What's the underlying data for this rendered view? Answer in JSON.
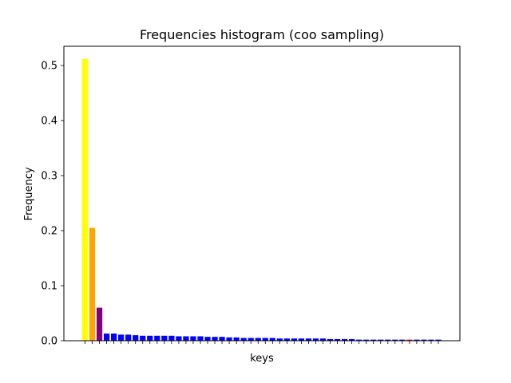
{
  "chart_data": {
    "type": "bar",
    "title": "Frequencies histogram (coo sampling)",
    "xlabel": "keys",
    "ylabel": "Frequency",
    "ylim": [
      0,
      0.535
    ],
    "yticks": [
      "0.0",
      "0.1",
      "0.2",
      "0.3",
      "0.4",
      "0.5"
    ],
    "ytick_values": [
      0.0,
      0.1,
      0.2,
      0.3,
      0.4,
      0.5
    ],
    "x_tick_labels_shown": false,
    "grid": false,
    "values": [
      0.512,
      0.205,
      0.06,
      0.013,
      0.013,
      0.011,
      0.011,
      0.01,
      0.009,
      0.009,
      0.009,
      0.009,
      0.009,
      0.008,
      0.008,
      0.008,
      0.008,
      0.007,
      0.007,
      0.007,
      0.006,
      0.006,
      0.005,
      0.005,
      0.005,
      0.005,
      0.005,
      0.004,
      0.004,
      0.004,
      0.004,
      0.004,
      0.004,
      0.004,
      0.003,
      0.003,
      0.003,
      0.003,
      0.002,
      0.002,
      0.002,
      0.002,
      0.002,
      0.002,
      0.002,
      0.002,
      0.002,
      0.002,
      0.002,
      0.002
    ],
    "colors": [
      "#ffff00",
      "#ffa500",
      "#800080",
      "#0000ff",
      "#0000ff",
      "#0000ff",
      "#0000ff",
      "#0000ff",
      "#0000ff",
      "#0000ff",
      "#0000ff",
      "#0000ff",
      "#0000ff",
      "#0000ff",
      "#0000ff",
      "#0000ff",
      "#0000ff",
      "#0000ff",
      "#0000ff",
      "#0000ff",
      "#0000ff",
      "#0000ff",
      "#0000ff",
      "#0000ff",
      "#0000ff",
      "#0000ff",
      "#0000ff",
      "#0000ff",
      "#0000ff",
      "#0000ff",
      "#0000ff",
      "#0000ff",
      "#0000ff",
      "#0000ff",
      "#0000ff",
      "#0000ff",
      "#0000ff",
      "#0000ff",
      "#0000ff",
      "#0000ff",
      "#0000ff",
      "#0000ff",
      "#0000ff",
      "#0000ff",
      "#0000ff",
      "#ff0000",
      "#0000ff",
      "#0000ff",
      "#0000ff",
      "#0000ff"
    ]
  }
}
